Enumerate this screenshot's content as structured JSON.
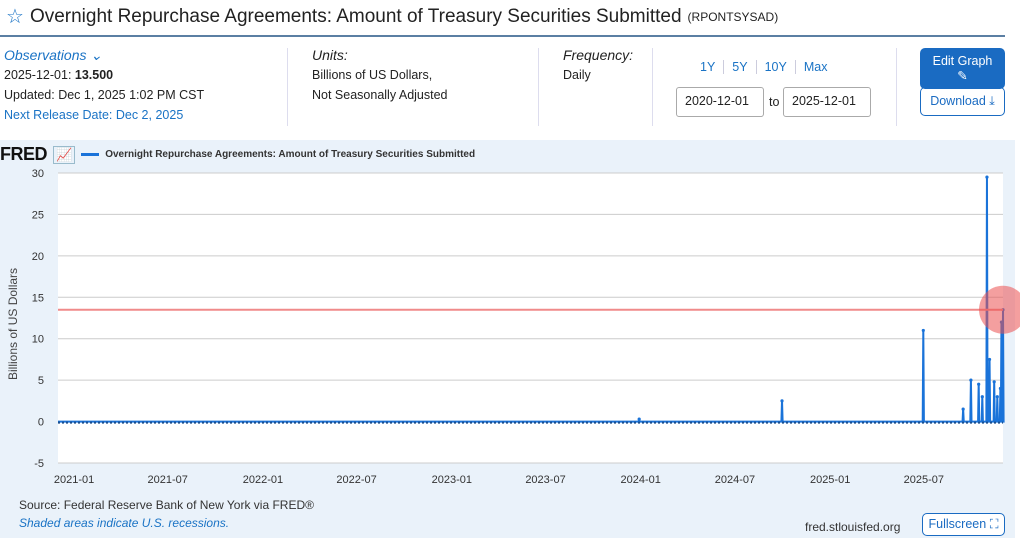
{
  "header": {
    "title": "Overnight Repurchase Agreements: Amount of Treasury Securities Submitted",
    "series_id": "(RPONTSYSAD)"
  },
  "obs": {
    "label": "Observations",
    "date": "2025-12-01:",
    "value": "13.500",
    "updated": "Updated: Dec 1, 2025 1:02 PM CST",
    "next_release": "Next Release Date: Dec 2, 2025"
  },
  "units": {
    "label": "Units:",
    "line1": "Billions of US Dollars,",
    "line2": "Not Seasonally Adjusted"
  },
  "frequency": {
    "label": "Frequency:",
    "value": "Daily"
  },
  "range": {
    "buttons": [
      "1Y",
      "5Y",
      "10Y",
      "Max"
    ],
    "from": "2020-12-01",
    "to_label": "to",
    "to": "2025-12-01"
  },
  "actions": {
    "edit": "Edit Graph",
    "download": "Download",
    "fullscreen": "Fullscreen"
  },
  "fred": {
    "logo": "FRED",
    "legend": "Overnight Repurchase Agreements: Amount of Treasury Securities Submitted"
  },
  "footer": {
    "source": "Source: Federal Reserve Bank of New York via FRED®",
    "recessions": "Shaded areas indicate U.S. recessions.",
    "site": "fred.stlouisfed.org"
  },
  "colors": {
    "series": "#1a73d9",
    "accent": "#1a73c5",
    "hover_line": "#f08a8a"
  },
  "chart_data": {
    "type": "line",
    "ylabel": "Billions of US Dollars",
    "ylim": [
      -5,
      30
    ],
    "yticks": [
      -5,
      0,
      5,
      10,
      15,
      20,
      25,
      30
    ],
    "xlim": [
      "2020-12-01",
      "2025-12-01"
    ],
    "xticks": [
      "2021-01",
      "2021-07",
      "2022-01",
      "2022-07",
      "2023-01",
      "2023-07",
      "2024-01",
      "2024-07",
      "2025-01",
      "2025-07"
    ],
    "baseline": 0,
    "spikes": [
      {
        "date": "2023-12-29",
        "value": 0.3
      },
      {
        "date": "2024-09-30",
        "value": 2.5
      },
      {
        "date": "2025-06-30",
        "value": 11
      },
      {
        "date": "2025-09-15",
        "value": 1.5
      },
      {
        "date": "2025-09-30",
        "value": 5
      },
      {
        "date": "2025-10-15",
        "value": 4.5
      },
      {
        "date": "2025-10-22",
        "value": 3
      },
      {
        "date": "2025-10-31",
        "value": 29.5
      },
      {
        "date": "2025-11-05",
        "value": 7.5
      },
      {
        "date": "2025-11-14",
        "value": 4.8
      },
      {
        "date": "2025-11-20",
        "value": 3
      },
      {
        "date": "2025-11-26",
        "value": 4
      },
      {
        "date": "2025-11-28",
        "value": 12
      },
      {
        "date": "2025-12-01",
        "value": 13.5
      }
    ],
    "hover": {
      "date": "2025-12-01",
      "value": 13.5
    }
  }
}
